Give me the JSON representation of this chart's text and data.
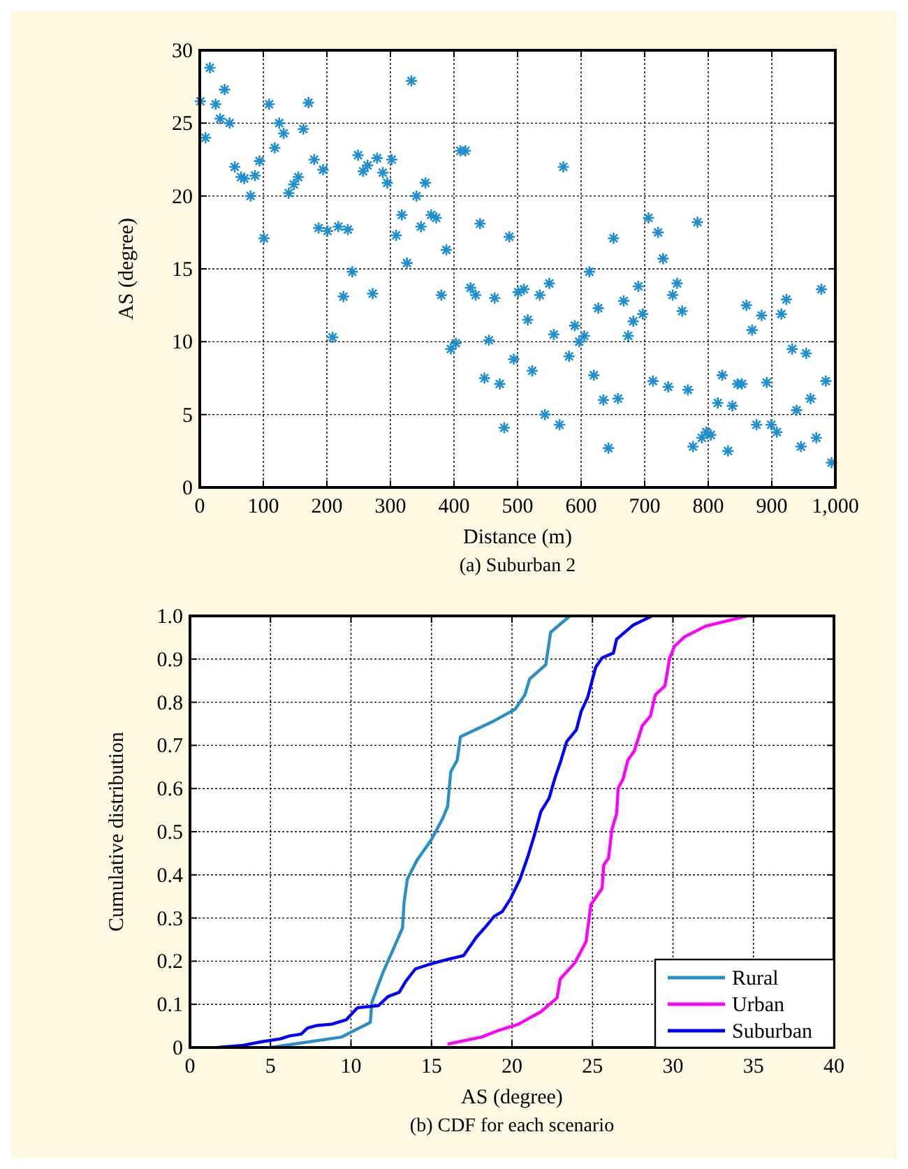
{
  "chart_data": [
    {
      "type": "scatter",
      "title": "(a) Suburban 2",
      "xlabel": "Distance (m)",
      "ylabel": "AS (degree)",
      "xlim": [
        0,
        1000
      ],
      "ylim": [
        0,
        30
      ],
      "xticks": [
        0,
        100,
        200,
        300,
        400,
        500,
        600,
        700,
        800,
        900,
        {
          "value": 1000,
          "label": "1,000"
        }
      ],
      "yticks": [
        0,
        5,
        10,
        15,
        20,
        25,
        30
      ],
      "grid": true,
      "marker": "cross",
      "legend": false,
      "series": [
        {
          "color": "#1f8fd0",
          "x": [
            1,
            9,
            16,
            25,
            32,
            39,
            47,
            55,
            65,
            70,
            80,
            87,
            94,
            101,
            109,
            118,
            125,
            132,
            140,
            148,
            155,
            163,
            171,
            180,
            187,
            194,
            201,
            209,
            218,
            226,
            233,
            240,
            249,
            257,
            264,
            272,
            279,
            288,
            295,
            302,
            309,
            318,
            326,
            333,
            341,
            348,
            355,
            364,
            372,
            380,
            388,
            395,
            403,
            410,
            418,
            426,
            434,
            441,
            448,
            455,
            464,
            472,
            479,
            487,
            494,
            501,
            510,
            516,
            523,
            535,
            543,
            550,
            557,
            566,
            572,
            581,
            590,
            597,
            605,
            613,
            620,
            627,
            635,
            643,
            651,
            658,
            667,
            674,
            682,
            690,
            697,
            706,
            713,
            721,
            729,
            737,
            744,
            751,
            759,
            768,
            776,
            783,
            790,
            797,
            804,
            815,
            822,
            831,
            838,
            846,
            853,
            860,
            869,
            876,
            884,
            892,
            899,
            908,
            915,
            923,
            932,
            939,
            946,
            954,
            961,
            970,
            978,
            985,
            994
          ],
          "values": [
            26.5,
            24.0,
            28.8,
            26.3,
            25.3,
            27.3,
            25.0,
            22.0,
            21.3,
            21.2,
            20.0,
            21.4,
            22.4,
            17.1,
            26.3,
            23.3,
            25.0,
            24.3,
            20.2,
            20.8,
            21.3,
            24.6,
            26.4,
            22.5,
            17.8,
            21.8,
            17.6,
            10.3,
            17.9,
            13.1,
            17.7,
            14.8,
            22.8,
            21.7,
            22.1,
            13.3,
            22.6,
            21.6,
            20.9,
            22.5,
            17.3,
            18.7,
            15.4,
            27.9,
            20.0,
            17.9,
            20.9,
            18.7,
            18.5,
            13.2,
            16.3,
            9.5,
            9.9,
            23.1,
            23.1,
            13.7,
            13.2,
            18.1,
            7.5,
            10.1,
            13.0,
            7.1,
            4.1,
            17.2,
            8.8,
            13.4,
            13.6,
            11.5,
            8.0,
            13.2,
            5.0,
            14.0,
            10.5,
            4.3,
            22.0,
            9.0,
            11.1,
            10.0,
            10.4,
            14.8,
            7.7,
            12.3,
            6.0,
            2.7,
            17.1,
            6.1,
            12.8,
            10.4,
            11.4,
            13.8,
            11.9,
            18.5,
            7.3,
            17.5,
            15.7,
            6.9,
            13.2,
            14.0,
            12.1,
            6.7,
            2.8,
            18.2,
            3.4,
            3.8,
            3.6,
            5.8,
            7.7,
            2.5,
            5.6,
            7.1,
            7.1,
            12.5,
            10.8,
            4.3,
            11.8,
            7.2,
            4.3,
            3.8,
            11.9,
            12.9,
            9.5,
            5.3,
            2.8,
            9.2,
            6.1,
            3.4,
            13.6,
            7.3,
            1.7
          ]
        }
      ]
    },
    {
      "type": "line",
      "title": "(b) CDF for each scenario",
      "xlabel": "AS (degree)",
      "ylabel": "Cumulative distribution",
      "xlim": [
        0,
        40
      ],
      "ylim": [
        0,
        1
      ],
      "xticks": [
        0,
        5,
        10,
        15,
        20,
        25,
        30,
        35,
        40
      ],
      "yticks": [
        0,
        {
          "value": 0.1,
          "label": "0.1"
        },
        {
          "value": 0.2,
          "label": "0.2"
        },
        {
          "value": 0.3,
          "label": "0.3"
        },
        {
          "value": 0.4,
          "label": "0.4"
        },
        {
          "value": 0.5,
          "label": "0.5"
        },
        {
          "value": 0.6,
          "label": "0.6"
        },
        {
          "value": 0.7,
          "label": "0.7"
        },
        {
          "value": 0.8,
          "label": "0.8"
        },
        {
          "value": 0.9,
          "label": "0.9"
        },
        {
          "value": 1,
          "label": "1.0"
        }
      ],
      "grid": true,
      "legend": "bottom right",
      "marker": "none",
      "line_style": "solid",
      "series": [
        {
          "name": "Rural",
          "color": "#2a8fc9",
          "x": [
            5.0,
            9.4,
            10.5,
            11.2,
            11.3,
            12.0,
            12.7,
            13.2,
            13.3,
            13.5,
            14.1,
            15.0,
            15.7,
            16.0,
            16.2,
            16.6,
            16.8,
            18.9,
            20.2,
            20.8,
            21.1,
            22.1,
            22.4,
            23.6
          ],
          "values": [
            0,
            0.024,
            0.045,
            0.058,
            0.105,
            0.175,
            0.234,
            0.277,
            0.337,
            0.39,
            0.434,
            0.482,
            0.531,
            0.558,
            0.639,
            0.666,
            0.72,
            0.757,
            0.784,
            0.817,
            0.854,
            0.887,
            0.962,
            1.0
          ]
        },
        {
          "name": "Urban",
          "color": "#ff00ff",
          "x": [
            16.0,
            18.1,
            19.2,
            20.4,
            21.8,
            22.8,
            23.0,
            23.9,
            24.6,
            24.9,
            25.2,
            25.6,
            25.7,
            26.0,
            26.2,
            26.5,
            26.6,
            26.9,
            27.2,
            27.6,
            28.1,
            28.6,
            28.9,
            29.5,
            29.8,
            30.1,
            30.7,
            32.0,
            34.6
          ],
          "values": [
            0.008,
            0.024,
            0.04,
            0.054,
            0.083,
            0.115,
            0.159,
            0.196,
            0.245,
            0.331,
            0.347,
            0.369,
            0.423,
            0.439,
            0.504,
            0.542,
            0.601,
            0.622,
            0.666,
            0.687,
            0.746,
            0.768,
            0.817,
            0.838,
            0.903,
            0.93,
            0.951,
            0.976,
            1.0
          ]
        },
        {
          "name": "Suburban",
          "color": "#0000ff",
          "x": [
            1.7,
            3.3,
            4.4,
            5.6,
            6.2,
            6.9,
            7.3,
            7.9,
            8.8,
            9.7,
            10.4,
            11.7,
            12.3,
            13.0,
            13.4,
            14.0,
            14.9,
            16.0,
            17.0,
            17.8,
            18.3,
            18.9,
            19.4,
            19.9,
            20.5,
            21.0,
            21.4,
            21.8,
            22.3,
            22.7,
            23.0,
            23.4,
            24.0,
            24.3,
            24.7,
            25.2,
            25.6,
            26.3,
            26.5,
            27.5,
            28.7
          ],
          "values": [
            0,
            0.005,
            0.013,
            0.02,
            0.027,
            0.031,
            0.045,
            0.051,
            0.054,
            0.064,
            0.092,
            0.097,
            0.118,
            0.128,
            0.153,
            0.182,
            0.193,
            0.204,
            0.213,
            0.256,
            0.277,
            0.304,
            0.315,
            0.344,
            0.39,
            0.444,
            0.493,
            0.547,
            0.577,
            0.628,
            0.66,
            0.709,
            0.736,
            0.779,
            0.811,
            0.881,
            0.903,
            0.914,
            0.946,
            0.978,
            1.0
          ]
        }
      ]
    }
  ]
}
